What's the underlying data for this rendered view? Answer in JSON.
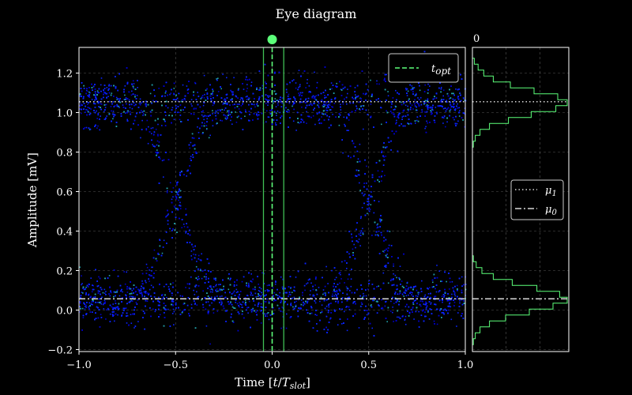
{
  "chart_data": {
    "type": "scatter",
    "title": "Eye diagram",
    "xlabel": "Time [t/T_slot]",
    "ylabel": "Amplitude [mV]",
    "xlim": [
      -1.0,
      1.0
    ],
    "ylim": [
      -0.21,
      1.33
    ],
    "x_ticks": [
      "−1.0",
      "−0.5",
      "0.0",
      "0.5",
      "1.0"
    ],
    "x_tick_values": [
      -1.0,
      -0.5,
      0.0,
      0.5,
      1.0
    ],
    "y_ticks": [
      "−0.2",
      "0.0",
      "0.2",
      "0.4",
      "0.6",
      "0.8",
      "1.0",
      "1.2"
    ],
    "y_tick_values": [
      -0.2,
      0.0,
      0.2,
      0.4,
      0.6,
      0.8,
      1.0,
      1.2
    ],
    "grid": true,
    "eye": {
      "mu1": 1.055,
      "mu0": 0.057,
      "crossings_x": [
        -0.5,
        0.5
      ],
      "crossing_level": 0.5
    },
    "t_opt": 0.0,
    "t_window": [
      -0.045,
      0.06
    ],
    "legend_main": {
      "position": "top-right",
      "entries": [
        "t_opt"
      ]
    },
    "histogram": {
      "xlim_label": "0",
      "legend": {
        "position": "center-right",
        "entries": [
          "μ1",
          "μ0"
        ]
      },
      "bins_high": [
        {
          "y": 1.26,
          "c": 2
        },
        {
          "y": 1.23,
          "c": 6
        },
        {
          "y": 1.2,
          "c": 12
        },
        {
          "y": 1.17,
          "c": 22
        },
        {
          "y": 1.14,
          "c": 40
        },
        {
          "y": 1.11,
          "c": 65
        },
        {
          "y": 1.08,
          "c": 90
        },
        {
          "y": 1.05,
          "c": 100
        },
        {
          "y": 1.02,
          "c": 88
        },
        {
          "y": 0.99,
          "c": 62
        },
        {
          "y": 0.96,
          "c": 38
        },
        {
          "y": 0.93,
          "c": 18
        },
        {
          "y": 0.9,
          "c": 8
        },
        {
          "y": 0.87,
          "c": 3
        },
        {
          "y": 0.84,
          "c": 1
        }
      ],
      "bins_low": [
        {
          "y": 0.26,
          "c": 1
        },
        {
          "y": 0.23,
          "c": 4
        },
        {
          "y": 0.2,
          "c": 10
        },
        {
          "y": 0.17,
          "c": 22
        },
        {
          "y": 0.14,
          "c": 42
        },
        {
          "y": 0.11,
          "c": 68
        },
        {
          "y": 0.08,
          "c": 92
        },
        {
          "y": 0.05,
          "c": 100
        },
        {
          "y": 0.02,
          "c": 85
        },
        {
          "y": -0.01,
          "c": 60
        },
        {
          "y": -0.04,
          "c": 35
        },
        {
          "y": -0.07,
          "c": 18
        },
        {
          "y": -0.1,
          "c": 8
        },
        {
          "y": -0.13,
          "c": 3
        },
        {
          "y": -0.16,
          "c": 1
        }
      ]
    }
  },
  "colors": {
    "background": "#000000",
    "dense_cloud": "#0a24ff",
    "sparse_cloud": "#0000cc",
    "hot_cloud": "#22a0a8",
    "accent": "#5cff7a",
    "window_line": "#3fbf55",
    "level_line": "#d8d8d8",
    "grid": "#555555"
  },
  "legend_labels": {
    "t_opt_main": "t",
    "t_opt_sub": "opt",
    "mu1_main": "μ",
    "mu1_sub": "1",
    "mu0_main": "μ",
    "mu0_sub": "0"
  },
  "labels": {
    "title": "Eye diagram",
    "xlabel_prefix": "Time [",
    "xlabel_t": "t",
    "xlabel_slash": "/",
    "xlabel_T": "T",
    "xlabel_sub": "slot",
    "xlabel_suffix": "]",
    "ylabel": "Amplitude [mV]",
    "hist_corner": "0"
  }
}
